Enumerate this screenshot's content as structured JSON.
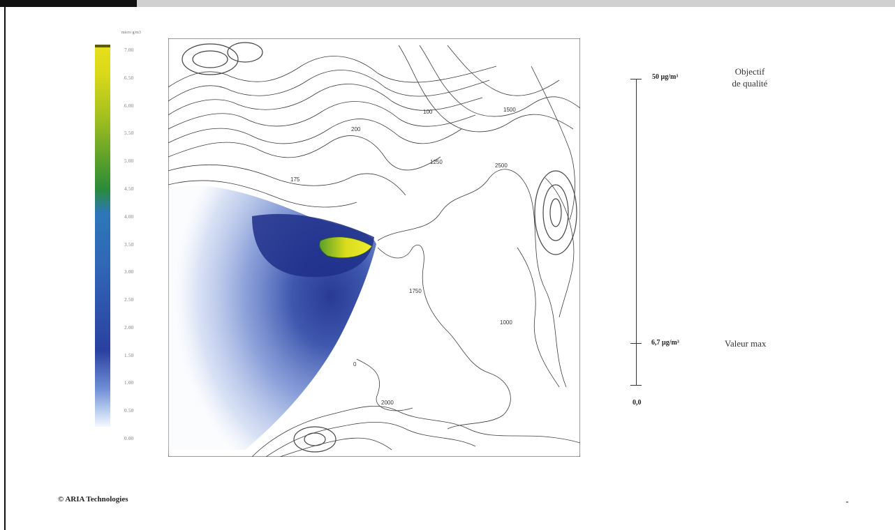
{
  "legend": {
    "unit": "micro g/m3",
    "ticks": [
      "7.00",
      "6.50",
      "6.00",
      "5.50",
      "5.00",
      "4.50",
      "4.00",
      "3.50",
      "3.00",
      "2.50",
      "2.00",
      "1.50",
      "1.00",
      "0.50",
      "0.00"
    ]
  },
  "contours": {
    "labels": [
      "200",
      "175",
      "100",
      "0",
      "1750",
      "2000",
      "2500",
      "1250",
      "1000",
      "1500"
    ]
  },
  "reference_scale": {
    "top_value": "50 µg/m³",
    "top_note_line1": "Objectif",
    "top_note_line2": "de qualité",
    "max_value": "6,7 µg/m³",
    "max_note": "Valeur max",
    "zero": "0,0"
  },
  "credit": "© ARIA Technologies"
}
